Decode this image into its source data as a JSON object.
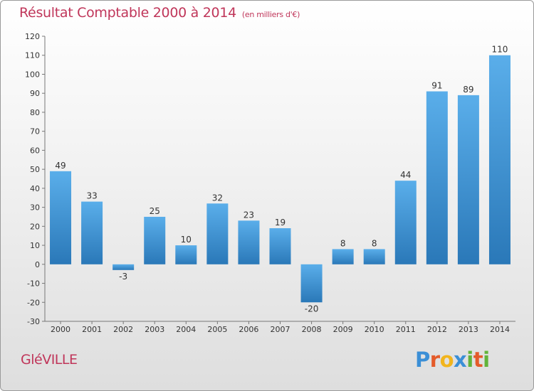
{
  "header": {
    "title": "Résultat Comptable 2000 à 2014",
    "subtitle": "(en milliers d'€)"
  },
  "footer": {
    "commune": "GléVILLE",
    "brand_letters": [
      {
        "ch": "P",
        "color": "#3b8fd6"
      },
      {
        "ch": "r",
        "color": "#e45b2a"
      },
      {
        "ch": "o",
        "color": "#f2b51d"
      },
      {
        "ch": "x",
        "color": "#3b8fd6"
      },
      {
        "ch": "i",
        "color": "#62b43a"
      },
      {
        "ch": "t",
        "color": "#e45b2a"
      },
      {
        "ch": "i",
        "color": "#62b43a"
      }
    ]
  },
  "chart_data": {
    "type": "bar",
    "categories": [
      "2000",
      "2001",
      "2002",
      "2003",
      "2004",
      "2005",
      "2006",
      "2007",
      "2008",
      "2009",
      "2010",
      "2011",
      "2012",
      "2013",
      "2014"
    ],
    "values": [
      49,
      33,
      -3,
      25,
      10,
      32,
      23,
      19,
      -20,
      8,
      8,
      44,
      91,
      89,
      110
    ],
    "ylim": [
      -30,
      120
    ],
    "yticks": [
      -30,
      -20,
      -10,
      0,
      10,
      20,
      30,
      40,
      50,
      60,
      70,
      80,
      90,
      100,
      110,
      120
    ],
    "grid": false,
    "bar_color": "#3e93d8"
  }
}
